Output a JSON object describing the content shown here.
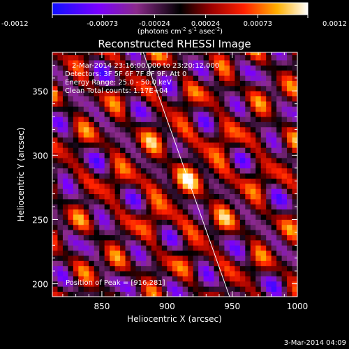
{
  "chart_data": {
    "type": "heatmap",
    "title": "Reconstructed RHESSI Image",
    "xlabel": "Heliocentric X (arcsec)",
    "ylabel": "Heliocentric Y (arcsec)",
    "xlim": [
      812,
      1000
    ],
    "ylim": [
      190,
      380
    ],
    "x_ticks": [
      850,
      900,
      950,
      1000
    ],
    "y_ticks": [
      200,
      250,
      300,
      350
    ],
    "colorbar": {
      "min": -0.0012,
      "max": 0.0012,
      "ticks": [
        "-0.0012",
        "-0.00073",
        "-0.00024",
        "0.00024",
        "0.00073",
        "0.0012"
      ],
      "unit_main": "(photons cm",
      "unit_exp1": "-2",
      "unit_mid": " s",
      "unit_exp2": "-1",
      "unit_mid2": " asec",
      "unit_exp3": "-2",
      "unit_end": ")"
    },
    "annotations": {
      "time_range": "2-Mar-2014 23:16:00.000 to 23:20:12.000",
      "detectors": "Detectors: 3F 5F 6F 7F 8F 9F, Att 0",
      "energy": "Energy Range: 25.0 - 50.0 keV",
      "clean": "Clean     Total counts: 1.17E+04",
      "peak": "Position of Peak = [916,281]"
    },
    "peak_position": [
      916,
      281
    ],
    "limb_line": [
      [
        880,
        385
      ],
      [
        948,
        190
      ]
    ],
    "footer_date": "3-Mar-2014 04:09"
  }
}
